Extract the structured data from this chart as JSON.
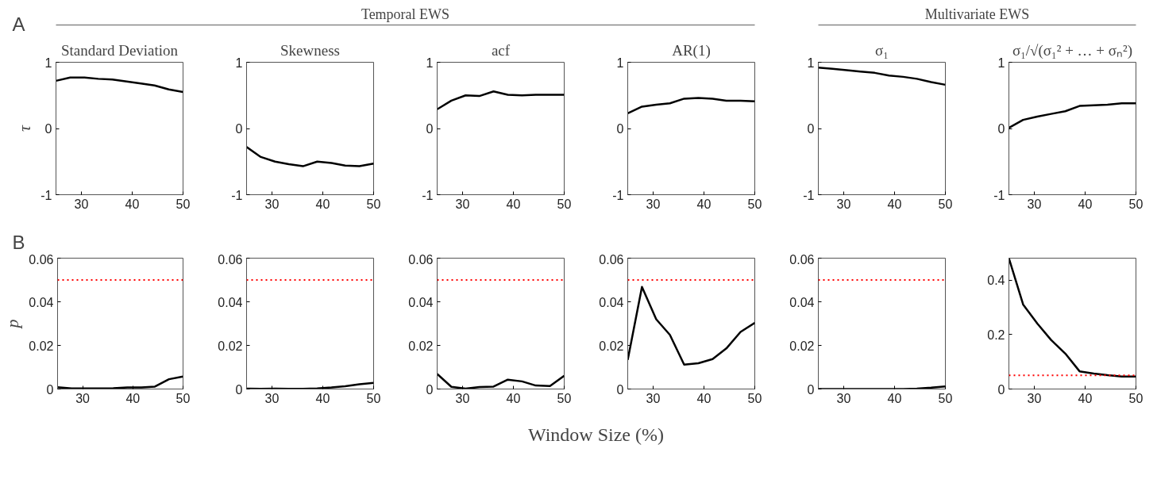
{
  "chart_data": [
    {
      "type": "line",
      "title": "Standard Deviation",
      "ylabel": "τ",
      "annotations": [
        "A",
        "Temporal EWS"
      ],
      "x": [
        25,
        27.8,
        30.6,
        33.3,
        36.1,
        38.9,
        41.7,
        44.4,
        47.2,
        50
      ],
      "series": [
        {
          "color": "#000000",
          "values": [
            0.72,
            0.77,
            0.77,
            0.75,
            0.74,
            0.71,
            0.68,
            0.65,
            0.59,
            0.55
          ]
        }
      ],
      "xlim": [
        25,
        50
      ],
      "ylim": [
        -1,
        1
      ],
      "xticks": [
        30,
        40,
        50
      ],
      "yticks": [
        -1,
        0,
        1
      ]
    },
    {
      "type": "line",
      "title": "Skewness",
      "x": [
        25,
        27.8,
        30.6,
        33.3,
        36.1,
        38.9,
        41.7,
        44.4,
        47.2,
        50
      ],
      "series": [
        {
          "color": "#000000",
          "values": [
            -0.28,
            -0.43,
            -0.5,
            -0.54,
            -0.57,
            -0.5,
            -0.52,
            -0.56,
            -0.57,
            -0.53
          ]
        }
      ],
      "xlim": [
        25,
        50
      ],
      "ylim": [
        -1,
        1
      ],
      "xticks": [
        30,
        40,
        50
      ],
      "yticks": [
        -1,
        0,
        1
      ]
    },
    {
      "type": "line",
      "title": "acf",
      "x": [
        25,
        27.8,
        30.6,
        33.3,
        36.1,
        38.9,
        41.7,
        44.4,
        47.2,
        50
      ],
      "series": [
        {
          "color": "#000000",
          "values": [
            0.29,
            0.42,
            0.5,
            0.49,
            0.56,
            0.51,
            0.5,
            0.51,
            0.51,
            0.51
          ]
        }
      ],
      "xlim": [
        25,
        50
      ],
      "ylim": [
        -1,
        1
      ],
      "xticks": [
        30,
        40,
        50
      ],
      "yticks": [
        -1,
        0,
        1
      ]
    },
    {
      "type": "line",
      "title": "AR(1)",
      "x": [
        25,
        27.8,
        30.6,
        33.3,
        36.1,
        38.9,
        41.7,
        44.4,
        47.2,
        50
      ],
      "series": [
        {
          "color": "#000000",
          "values": [
            0.23,
            0.33,
            0.36,
            0.38,
            0.45,
            0.46,
            0.45,
            0.42,
            0.42,
            0.41
          ]
        }
      ],
      "xlim": [
        25,
        50
      ],
      "ylim": [
        -1,
        1
      ],
      "xticks": [
        30,
        40,
        50
      ],
      "yticks": [
        -1,
        0,
        1
      ]
    },
    {
      "type": "line",
      "title": "σ₁",
      "annotations": [
        "Multivariate EWS"
      ],
      "x": [
        25,
        27.8,
        30.6,
        33.3,
        36.1,
        38.9,
        41.7,
        44.4,
        47.2,
        50
      ],
      "series": [
        {
          "color": "#000000",
          "values": [
            0.92,
            0.9,
            0.88,
            0.86,
            0.84,
            0.8,
            0.78,
            0.75,
            0.7,
            0.66
          ]
        }
      ],
      "xlim": [
        25,
        50
      ],
      "ylim": [
        -1,
        1
      ],
      "xticks": [
        30,
        40,
        50
      ],
      "yticks": [
        -1,
        0,
        1
      ]
    },
    {
      "type": "line",
      "title": "σ₁/√(σ₁² + … + σₙ²)",
      "x": [
        25,
        27.8,
        30.6,
        33.3,
        36.1,
        38.9,
        41.7,
        44.4,
        47.2,
        50
      ],
      "series": [
        {
          "color": "#000000",
          "values": [
            0.01,
            0.13,
            0.18,
            0.22,
            0.26,
            0.34,
            0.35,
            0.36,
            0.38,
            0.38
          ]
        }
      ],
      "xlim": [
        25,
        50
      ],
      "ylim": [
        -1,
        1
      ],
      "xticks": [
        30,
        40,
        50
      ],
      "yticks": [
        -1,
        0,
        1
      ]
    },
    {
      "type": "line",
      "ylabel": "p",
      "annotations": [
        "B",
        "Window Size (%)"
      ],
      "x": [
        25,
        27.8,
        30.6,
        33.3,
        36.1,
        38.9,
        41.7,
        44.4,
        47.2,
        50
      ],
      "series": [
        {
          "color": "#000000",
          "values": [
            0.0008,
            0.0003,
            0.0003,
            0.0003,
            0.0004,
            0.0007,
            0.0007,
            0.0011,
            0.0045,
            0.0057
          ]
        }
      ],
      "xlim": [
        25,
        50
      ],
      "ylim": [
        0,
        0.06
      ],
      "xticks": [
        30,
        40,
        50
      ],
      "yticks": [
        0,
        0.02,
        0.04,
        0.06
      ],
      "ref_lines": [
        {
          "axis": "y",
          "value": 0.05,
          "color": "#ff0000",
          "line_style": "dotted"
        }
      ]
    },
    {
      "type": "line",
      "x": [
        25,
        27.8,
        30.6,
        33.3,
        36.1,
        38.9,
        41.7,
        44.4,
        47.2,
        50
      ],
      "series": [
        {
          "color": "#000000",
          "values": [
            0.0002,
            0.0001,
            0.0002,
            0.0001,
            0.0001,
            0.0003,
            0.0007,
            0.0013,
            0.0022,
            0.0028
          ]
        }
      ],
      "xlim": [
        25,
        50
      ],
      "ylim": [
        0,
        0.06
      ],
      "xticks": [
        30,
        40,
        50
      ],
      "yticks": [
        0,
        0.02,
        0.04,
        0.06
      ],
      "ref_lines": [
        {
          "axis": "y",
          "value": 0.05,
          "color": "#ff0000",
          "line_style": "dotted"
        }
      ]
    },
    {
      "type": "line",
      "x": [
        25,
        27.8,
        30.6,
        33.3,
        36.1,
        38.9,
        41.7,
        44.4,
        47.2,
        50
      ],
      "series": [
        {
          "color": "#000000",
          "values": [
            0.0069,
            0.001,
            0.0002,
            0.0009,
            0.0011,
            0.0043,
            0.0035,
            0.0016,
            0.0014,
            0.0061
          ]
        }
      ],
      "xlim": [
        25,
        50
      ],
      "ylim": [
        0,
        0.06
      ],
      "xticks": [
        30,
        40,
        50
      ],
      "yticks": [
        0,
        0.02,
        0.04,
        0.06
      ],
      "ref_lines": [
        {
          "axis": "y",
          "value": 0.05,
          "color": "#ff0000",
          "line_style": "dotted"
        }
      ]
    },
    {
      "type": "line",
      "x": [
        25,
        27.8,
        30.6,
        33.3,
        36.1,
        38.9,
        41.7,
        44.4,
        47.2,
        50
      ],
      "series": [
        {
          "color": "#000000",
          "values": [
            0.0134,
            0.0468,
            0.032,
            0.0248,
            0.0112,
            0.0118,
            0.0137,
            0.0186,
            0.0262,
            0.0303
          ]
        }
      ],
      "xlim": [
        25,
        50
      ],
      "ylim": [
        0,
        0.06
      ],
      "xticks": [
        30,
        40,
        50
      ],
      "yticks": [
        0,
        0.02,
        0.04,
        0.06
      ],
      "ref_lines": [
        {
          "axis": "y",
          "value": 0.05,
          "color": "#ff0000",
          "line_style": "dotted"
        }
      ]
    },
    {
      "type": "line",
      "x": [
        25,
        27.8,
        30.6,
        33.3,
        36.1,
        38.9,
        41.7,
        44.4,
        47.2,
        50
      ],
      "series": [
        {
          "color": "#000000",
          "values": [
            0,
            0,
            0,
            0,
            0,
            0,
            0,
            0.0002,
            0.0006,
            0.0012
          ]
        }
      ],
      "xlim": [
        25,
        50
      ],
      "ylim": [
        0,
        0.06
      ],
      "xticks": [
        30,
        40,
        50
      ],
      "yticks": [
        0,
        0.02,
        0.04,
        0.06
      ],
      "ref_lines": [
        {
          "axis": "y",
          "value": 0.05,
          "color": "#ff0000",
          "line_style": "dotted"
        }
      ]
    },
    {
      "type": "line",
      "x": [
        25,
        27.8,
        30.6,
        33.3,
        36.1,
        38.9,
        41.7,
        44.4,
        47.2,
        50
      ],
      "series": [
        {
          "color": "#000000",
          "values": [
            0.48,
            0.31,
            0.24,
            0.18,
            0.13,
            0.065,
            0.057,
            0.051,
            0.046,
            0.046
          ]
        }
      ],
      "xlim": [
        25,
        50
      ],
      "ylim": [
        0,
        0.48
      ],
      "xticks": [
        30,
        40,
        50
      ],
      "yticks": [
        0,
        0.2,
        0.4
      ],
      "ref_lines": [
        {
          "axis": "y",
          "value": 0.05,
          "color": "#ff0000",
          "line_style": "dotted"
        }
      ]
    }
  ]
}
